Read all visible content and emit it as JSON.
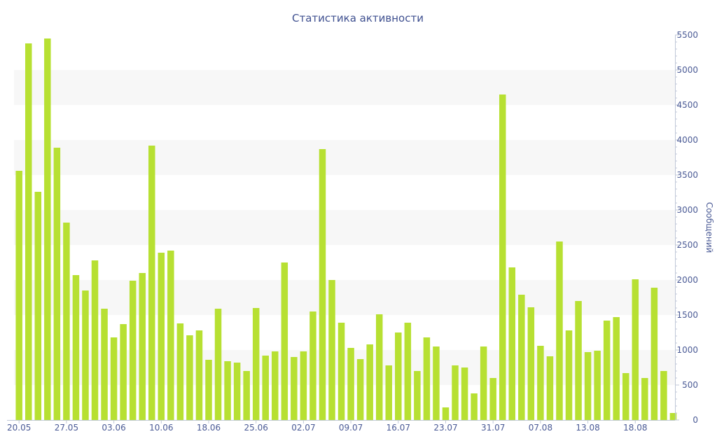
{
  "chart_data": {
    "type": "bar",
    "title": "Статистика активности",
    "ylabel": "Сообщений",
    "xlabel": "",
    "ylim": [
      0,
      5500
    ],
    "yticks": [
      0,
      500,
      1000,
      1500,
      2000,
      2500,
      3000,
      3500,
      4000,
      4500,
      5000,
      5500
    ],
    "y_axis_position": "right",
    "grid": "alternating horizontal bands",
    "bar_color": "#b7e032",
    "band_color": "#f7f7f7",
    "text_color": "#4a5a95",
    "x_tick_labels": [
      {
        "index": 0,
        "label": "20.05"
      },
      {
        "index": 5,
        "label": "27.05"
      },
      {
        "index": 10,
        "label": "03.06"
      },
      {
        "index": 15,
        "label": "10.06"
      },
      {
        "index": 20,
        "label": "18.06"
      },
      {
        "index": 25,
        "label": "25.06"
      },
      {
        "index": 30,
        "label": "02.07"
      },
      {
        "index": 35,
        "label": "09.07"
      },
      {
        "index": 40,
        "label": "16.07"
      },
      {
        "index": 45,
        "label": "23.07"
      },
      {
        "index": 50,
        "label": "31.07"
      },
      {
        "index": 55,
        "label": "07.08"
      },
      {
        "index": 60,
        "label": "13.08"
      },
      {
        "index": 65,
        "label": "18.08"
      }
    ],
    "values": [
      3560,
      5380,
      3260,
      5450,
      3890,
      2820,
      2070,
      1850,
      2280,
      1590,
      1180,
      1370,
      1990,
      2100,
      3920,
      2390,
      2420,
      1380,
      1210,
      1280,
      860,
      1590,
      840,
      820,
      700,
      1600,
      920,
      980,
      2250,
      900,
      980,
      1550,
      3870,
      2000,
      1390,
      1030,
      870,
      1080,
      1510,
      780,
      1250,
      1390,
      700,
      1180,
      1050,
      180,
      780,
      750,
      380,
      1050,
      600,
      4650,
      2180,
      1790,
      1610,
      1060,
      910,
      2550,
      1280,
      1700,
      970,
      990,
      1420,
      1470,
      670,
      2010,
      600,
      1890,
      700,
      100
    ]
  }
}
